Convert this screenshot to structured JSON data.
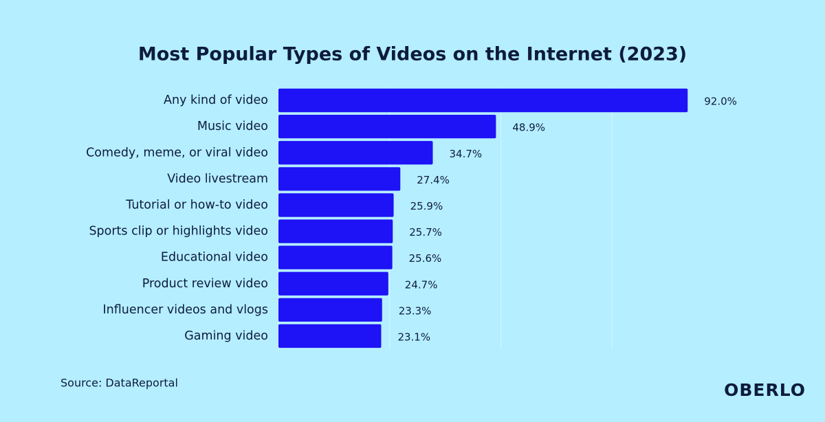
{
  "chart_data": {
    "type": "bar",
    "orientation": "horizontal",
    "title": "Most Popular Types of Videos on the Internet (2023)",
    "categories": [
      "Any kind of video",
      "Music video",
      "Comedy, meme, or viral video",
      "Video livestream",
      "Tutorial or how-to video",
      "Sports clip or highlights video",
      "Educational video",
      "Product review video",
      "Influencer videos and vlogs",
      "Gaming video"
    ],
    "values": [
      92.0,
      48.9,
      34.7,
      27.4,
      25.9,
      25.7,
      25.6,
      24.7,
      23.3,
      23.1
    ],
    "value_labels": [
      "92.0%",
      "48.9%",
      "34.7%",
      "27.4%",
      "25.9%",
      "25.7%",
      "25.6%",
      "24.7%",
      "23.3%",
      "23.1%"
    ],
    "color": "#1e12f6",
    "xlim": [
      0,
      100
    ],
    "xticks": [
      0,
      25,
      50,
      75
    ],
    "grid": true,
    "source": "Source: DataReportal",
    "logo": "OBERLO"
  }
}
